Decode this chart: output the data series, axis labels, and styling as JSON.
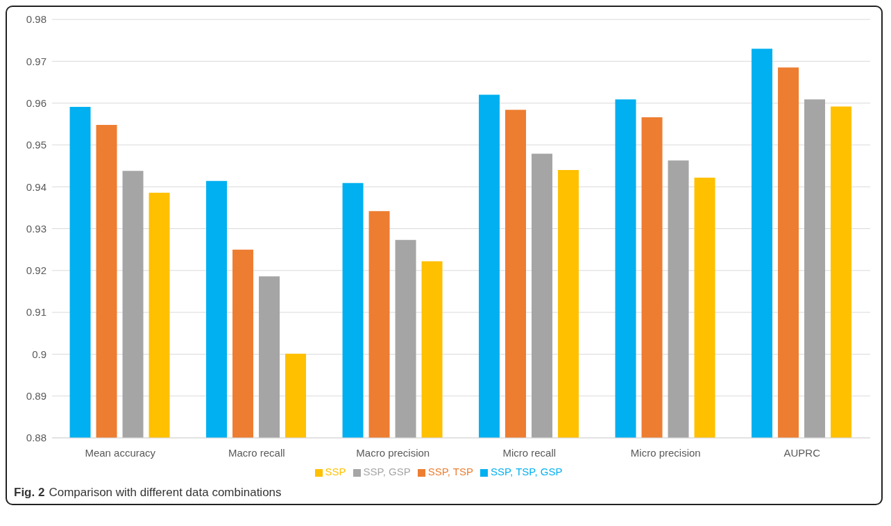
{
  "chart_data": {
    "type": "bar",
    "categories": [
      "Mean accuracy",
      "Macro recall",
      "Macro precision",
      "Micro recall",
      "Micro precision",
      "AUPRC"
    ],
    "series": [
      {
        "name": "SSP, TSP, GSP",
        "color": "#00b0f0",
        "values": [
          0.9591,
          0.9414,
          0.9409,
          0.962,
          0.9609,
          0.973
        ]
      },
      {
        "name": "SSP, TSP",
        "color": "#ed7d31",
        "values": [
          0.9548,
          0.925,
          0.9342,
          0.9584,
          0.9566,
          0.9685
        ]
      },
      {
        "name": "SSP, GSP",
        "color": "#a5a5a5",
        "values": [
          0.9438,
          0.9186,
          0.9273,
          0.9479,
          0.9463,
          0.9609
        ]
      },
      {
        "name": "SSP",
        "color": "#ffc000",
        "values": [
          0.9386,
          0.9001,
          0.9222,
          0.944,
          0.9422,
          0.9592
        ]
      }
    ],
    "ylim": [
      0.88,
      0.98
    ],
    "yticks": [
      0.88,
      0.89,
      0.9,
      0.91,
      0.92,
      0.93,
      0.94,
      0.95,
      0.96,
      0.97,
      0.98
    ],
    "grid": "y",
    "legend": "bottom",
    "annotations": [
      "Fig. 2",
      "Comparison with different data combinations"
    ]
  }
}
